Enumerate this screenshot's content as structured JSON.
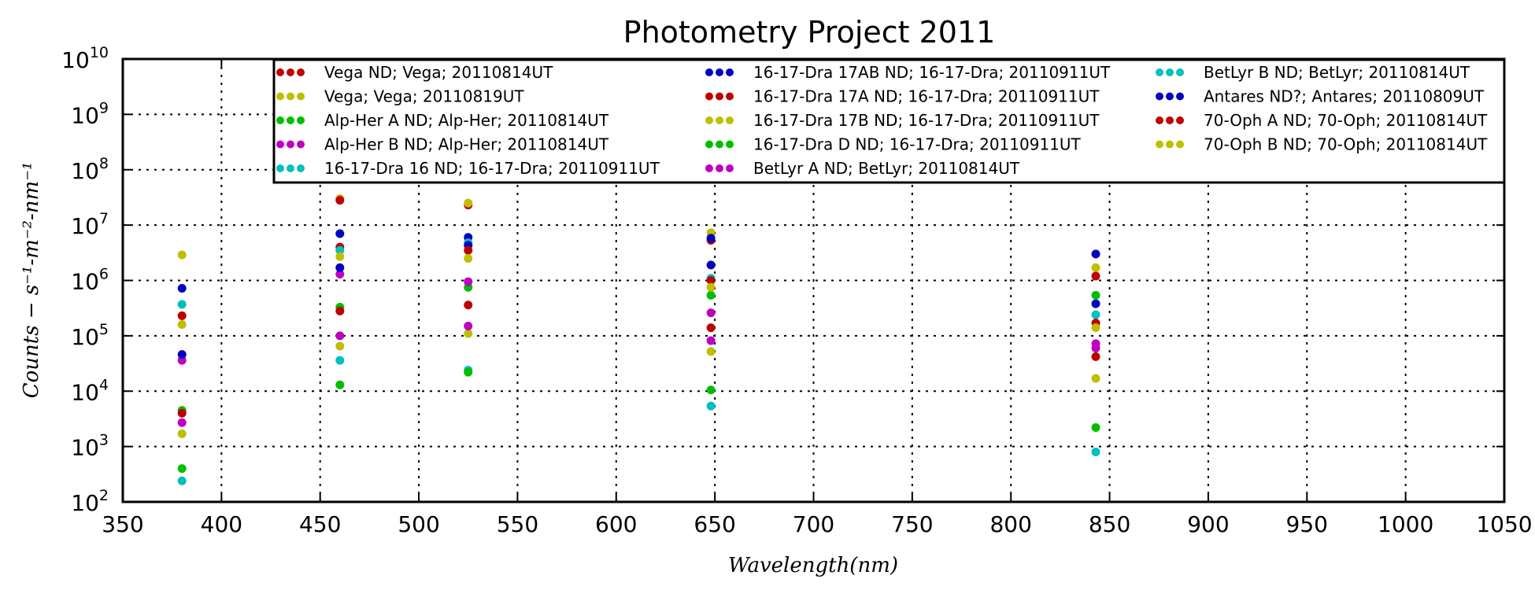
{
  "chart_data": {
    "type": "scatter",
    "title": "Photometry Project 2011",
    "xlabel": "Wavelength(nm)",
    "ylabel": "Counts − s⁻¹-m⁻²-nm⁻¹",
    "xlim": [
      350,
      1050
    ],
    "ylim": [
      100,
      10000000000
    ],
    "yscale": "log",
    "xticks": [
      350,
      400,
      450,
      500,
      550,
      600,
      650,
      700,
      750,
      800,
      850,
      900,
      950,
      1000,
      1050
    ],
    "yticks": [
      {
        "exp": 2,
        "base": "10",
        "sup": "2"
      },
      {
        "exp": 3,
        "base": "10",
        "sup": "3"
      },
      {
        "exp": 4,
        "base": "10",
        "sup": "4"
      },
      {
        "exp": 5,
        "base": "10",
        "sup": "5"
      },
      {
        "exp": 6,
        "base": "10",
        "sup": "6"
      },
      {
        "exp": 7,
        "base": "10",
        "sup": "7"
      },
      {
        "exp": 8,
        "base": "10",
        "sup": "8"
      },
      {
        "exp": 9,
        "base": "10",
        "sup": "9"
      },
      {
        "exp": 10,
        "base": "10",
        "sup": "10"
      }
    ],
    "grid": true,
    "legend": "top",
    "series": [
      {
        "name": "Vega ND; Vega; 20110814UT",
        "color": "#bf0000",
        "x": [
          380,
          460,
          525,
          648,
          843
        ],
        "y": [
          230000,
          4000000,
          23000000,
          5300000,
          1200000
        ]
      },
      {
        "name": "Vega; Vega; 20110819UT",
        "color": "#bfbf00",
        "x": [
          380,
          460,
          525,
          648,
          843
        ],
        "y": [
          2900000,
          30000000,
          25000000,
          7300000,
          1700000
        ]
      },
      {
        "name": "Alp-Her A ND; Alp-Her; 20110814UT",
        "color": "#00bf00",
        "x": [
          380,
          460,
          525,
          648,
          843
        ],
        "y": [
          4500,
          330000,
          750000,
          540000,
          540000
        ]
      },
      {
        "name": "Alp-Her B ND; Alp-Her; 20110814UT",
        "color": "#bf00bf",
        "x": [
          380,
          460,
          525,
          648,
          843
        ],
        "y": [
          36000,
          1300000,
          950000,
          260000,
          72000
        ]
      },
      {
        "name": "16-17-Dra 16 ND; 16-17-Dra; 20110911UT",
        "color": "#00bfbf",
        "x": [
          380,
          460,
          525,
          648,
          843
        ],
        "y": [
          240,
          36000,
          24000,
          5400,
          800
        ]
      },
      {
        "name": "16-17-Dra 17AB ND; 16-17-Dra; 20110911UT",
        "color": "#0000bf",
        "x": [
          380,
          460,
          525,
          648,
          843
        ],
        "y": [
          720000,
          7000000,
          6000000,
          5800000,
          3000000
        ]
      },
      {
        "name": "16-17-Dra 17A ND; 16-17-Dra; 20110911UT",
        "color": "#bf0000",
        "x": [
          380,
          460,
          525,
          648,
          843
        ],
        "y": [
          4000,
          280000,
          360000,
          140000,
          42000
        ]
      },
      {
        "name": "16-17-Dra 17B ND; 16-17-Dra; 20110911UT",
        "color": "#bfbf00",
        "x": [
          380,
          460,
          525,
          648,
          843
        ],
        "y": [
          1700,
          65000,
          110000,
          52000,
          17000
        ]
      },
      {
        "name": "16-17-Dra D ND; 16-17-Dra; 20110911UT",
        "color": "#00bf00",
        "x": [
          380,
          460,
          525,
          648,
          843
        ],
        "y": [
          400,
          13000,
          22000,
          10500,
          2200
        ]
      },
      {
        "name": "BetLyr A ND; BetLyr; 20110814UT",
        "color": "#bf00bf",
        "x": [
          380,
          460,
          525,
          648,
          843
        ],
        "y": [
          2700,
          100000,
          150000,
          82000,
          60000
        ]
      },
      {
        "name": "BetLyr B ND; BetLyr; 20110814UT",
        "color": "#00bfbf",
        "x": [
          380,
          460,
          525,
          648,
          843
        ],
        "y": [
          370000,
          3500000,
          4800000,
          1100000,
          240000
        ]
      },
      {
        "name": "Antares ND?; Antares; 20110809UT",
        "color": "#0000bf",
        "x": [
          380,
          460,
          525,
          648,
          843
        ],
        "y": [
          46000,
          1700000,
          4300000,
          1900000,
          380000
        ]
      },
      {
        "name": "70-Oph A ND; 70-Oph; 20110814UT",
        "color": "#bf0000",
        "x": [
          460,
          525,
          648,
          843
        ],
        "y": [
          28000000,
          3500000,
          1000000,
          170000
        ]
      },
      {
        "name": "70-Oph B ND; 70-Oph; 20110814UT",
        "color": "#bfbf00",
        "x": [
          380,
          460,
          525,
          648,
          843
        ],
        "y": [
          160000,
          2700000,
          2500000,
          750000,
          140000
        ]
      }
    ]
  }
}
